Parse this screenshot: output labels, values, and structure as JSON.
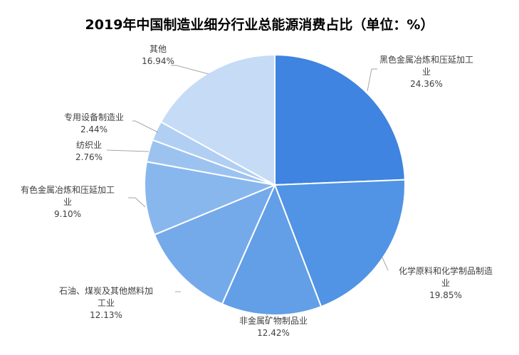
{
  "chart_data": {
    "type": "pie",
    "title": "2019年中国制造业细分行业总能源消费占比（单位：%）",
    "legend": "none",
    "slices": [
      {
        "label": [
          "黑色金属冶炼和压延加工",
          "业"
        ],
        "value": 24.36,
        "pct_label": "24.36%",
        "color": "#3e84e0"
      },
      {
        "label": [
          "化学原料和化学制品制造",
          "业"
        ],
        "value": 19.85,
        "pct_label": "19.85%",
        "color": "#5193e4"
      },
      {
        "label": [
          "非金属矿物制品业"
        ],
        "value": 12.42,
        "pct_label": "12.42%",
        "color": "#629fe7"
      },
      {
        "label": [
          "石油、煤炭及其他燃料加",
          "工业"
        ],
        "value": 12.13,
        "pct_label": "12.13%",
        "color": "#74aaea"
      },
      {
        "label": [
          "有色金属冶炼和压延加工",
          "业"
        ],
        "value": 9.1,
        "pct_label": "9.10%",
        "color": "#88b7ee"
      },
      {
        "label": [
          "纺织业"
        ],
        "value": 2.76,
        "pct_label": "2.76%",
        "color": "#9cc3f0"
      },
      {
        "label": [
          "专用设备制造业"
        ],
        "value": 2.44,
        "pct_label": "2.44%",
        "color": "#b0cff3"
      },
      {
        "label": [
          "其他"
        ],
        "value": 16.94,
        "pct_label": "16.94%",
        "color": "#c5dbf6"
      }
    ]
  }
}
